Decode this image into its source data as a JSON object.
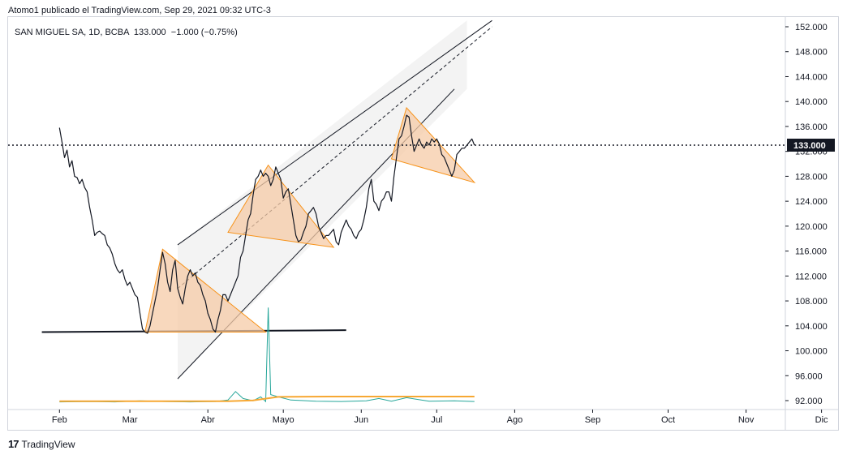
{
  "header": {
    "attribution": "Atomo1 publicado el TradingView.com, Sep 29, 2021 09:32 UTC-3"
  },
  "legend": {
    "text": "SAN MIGUEL SA, 1D, BCBA  133.000  −1.000 (−0.75%)"
  },
  "footer": {
    "brand": "TradingView",
    "logo_glyph": "17"
  },
  "colors": {
    "price": "#131722",
    "pattern_fill": "#f5cba7",
    "pattern_stroke": "#f7931a",
    "channel_fill": "#f3f3f3",
    "volume_line": "#26a69a",
    "volume_ma": "#f7a833"
  },
  "chart_data": {
    "type": "line",
    "symbol": "SAN MIGUEL SA",
    "interval": "1D",
    "exchange": "BCBA",
    "last_price_label": "133.000",
    "last_price": 133,
    "yticks": [
      "152.000",
      "148.000",
      "144.000",
      "140.000",
      "136.000",
      "132.000",
      "128.000",
      "124.000",
      "120.000",
      "116.000",
      "112.000",
      "108.000",
      "104.000",
      "100.000",
      "96.000",
      "92.000"
    ],
    "ylim": [
      90.5,
      153.5
    ],
    "xticks": [
      {
        "label": "Feb",
        "day": -7
      },
      {
        "label": "Mar",
        "day": 21
      },
      {
        "label": "Abr",
        "day": 52
      },
      {
        "label": "Mayo",
        "day": 82
      },
      {
        "label": "Jun",
        "day": 113
      },
      {
        "label": "Jul",
        "day": 143
      },
      {
        "label": "Ago",
        "day": 174
      },
      {
        "label": "Sep",
        "day": 205
      },
      {
        "label": "Oct",
        "day": 235
      },
      {
        "label": "Nov",
        "day": 266
      },
      {
        "label": "Dic",
        "day": 296
      }
    ],
    "x_unit": "days since Mar 1, 2021",
    "series": [
      {
        "values": [
          [
            -7,
            135.8
          ],
          [
            -6,
            133.5
          ],
          [
            -5,
            131
          ],
          [
            -4,
            132.2
          ],
          [
            -3,
            129.5
          ],
          [
            -2,
            130.5
          ],
          [
            -1,
            128
          ],
          [
            0,
            127.8
          ],
          [
            1,
            126.8
          ],
          [
            2,
            127.5
          ],
          [
            3,
            126.2
          ],
          [
            4,
            125.5
          ],
          [
            5,
            123
          ],
          [
            6,
            121
          ],
          [
            7,
            118.5
          ],
          [
            8,
            119
          ],
          [
            9,
            119.2
          ],
          [
            10,
            118.8
          ],
          [
            11,
            118.5
          ],
          [
            12,
            117
          ],
          [
            13,
            116.5
          ],
          [
            14,
            115.5
          ],
          [
            15,
            114
          ],
          [
            16,
            113
          ],
          [
            17,
            112.5
          ],
          [
            18,
            113
          ],
          [
            19,
            111.5
          ],
          [
            20,
            110.5
          ],
          [
            21,
            111
          ],
          [
            22,
            110
          ],
          [
            23,
            109
          ],
          [
            24,
            108.6
          ],
          [
            25,
            106
          ],
          [
            26,
            103.5
          ],
          [
            27,
            103
          ],
          [
            28,
            102.8
          ],
          [
            29,
            104
          ],
          [
            30,
            106
          ],
          [
            31,
            108
          ],
          [
            32,
            110
          ],
          [
            33,
            113
          ],
          [
            34,
            115.8
          ],
          [
            35,
            114
          ],
          [
            36,
            111
          ],
          [
            37,
            109.5
          ],
          [
            38,
            113
          ],
          [
            39,
            114.5
          ],
          [
            40,
            110
          ],
          [
            41,
            108.6
          ],
          [
            42,
            107.5
          ],
          [
            43,
            110
          ],
          [
            44,
            112
          ],
          [
            45,
            113
          ],
          [
            46,
            112
          ],
          [
            47,
            112.5
          ],
          [
            48,
            111
          ],
          [
            49,
            110.5
          ],
          [
            50,
            109
          ],
          [
            51,
            108
          ],
          [
            52,
            106
          ],
          [
            53,
            105
          ],
          [
            54,
            103.5
          ],
          [
            55,
            103
          ],
          [
            56,
            105
          ],
          [
            57,
            106.5
          ],
          [
            58,
            109
          ],
          [
            59,
            109
          ],
          [
            60,
            108
          ],
          [
            61,
            109
          ],
          [
            62,
            110
          ],
          [
            63,
            111
          ],
          [
            64,
            112
          ],
          [
            65,
            115
          ],
          [
            66,
            116
          ],
          [
            67,
            118.5
          ],
          [
            68,
            121
          ],
          [
            69,
            122
          ],
          [
            70,
            125
          ],
          [
            71,
            127.5
          ],
          [
            72,
            128
          ],
          [
            73,
            129
          ],
          [
            74,
            128
          ],
          [
            75,
            128.5
          ],
          [
            76,
            128
          ],
          [
            77,
            126.5
          ],
          [
            78,
            127.5
          ],
          [
            79,
            129.5
          ],
          [
            80,
            128.5
          ],
          [
            81,
            127.5
          ],
          [
            82,
            124.5
          ],
          [
            83,
            125.5
          ],
          [
            84,
            126
          ],
          [
            85,
            123.5
          ],
          [
            86,
            121
          ],
          [
            87,
            118.5
          ],
          [
            88,
            117.5
          ],
          [
            89,
            117.8
          ],
          [
            90,
            119
          ],
          [
            91,
            120
          ],
          [
            92,
            122
          ],
          [
            93,
            122.5
          ],
          [
            94,
            123
          ],
          [
            95,
            122
          ],
          [
            96,
            120
          ],
          [
            97,
            119
          ],
          [
            98,
            118
          ],
          [
            99,
            118.5
          ],
          [
            100,
            118.5
          ],
          [
            101,
            119
          ],
          [
            102,
            119.5
          ],
          [
            103,
            117.5
          ],
          [
            104,
            117
          ],
          [
            105,
            119
          ],
          [
            106,
            120
          ],
          [
            107,
            121
          ],
          [
            108,
            120
          ],
          [
            109,
            119.5
          ],
          [
            110,
            118.5
          ],
          [
            111,
            118
          ],
          [
            112,
            119
          ],
          [
            113,
            119.5
          ],
          [
            114,
            121
          ],
          [
            115,
            123
          ],
          [
            116,
            126
          ],
          [
            117,
            127.5
          ],
          [
            118,
            124
          ],
          [
            119,
            123.5
          ],
          [
            120,
            122.5
          ],
          [
            121,
            124
          ],
          [
            122,
            124.5
          ],
          [
            123,
            125.5
          ],
          [
            124,
            125.5
          ],
          [
            125,
            124
          ],
          [
            126,
            128
          ],
          [
            127,
            131
          ],
          [
            128,
            134
          ],
          [
            129,
            134.5
          ],
          [
            130,
            136
          ],
          [
            131,
            137.8
          ],
          [
            132,
            137.5
          ],
          [
            133,
            134.5
          ],
          [
            134,
            132
          ],
          [
            135,
            133
          ],
          [
            136,
            134
          ],
          [
            137,
            133
          ],
          [
            138,
            132.5
          ],
          [
            139,
            133.5
          ],
          [
            140,
            133
          ],
          [
            141,
            134
          ],
          [
            142,
            133.5
          ],
          [
            143,
            134
          ],
          [
            144,
            133.2
          ],
          [
            145,
            131.5
          ],
          [
            146,
            131
          ],
          [
            147,
            130
          ],
          [
            148,
            129
          ],
          [
            149,
            128
          ],
          [
            150,
            129
          ],
          [
            151,
            131.5
          ],
          [
            152,
            132
          ],
          [
            153,
            132.5
          ],
          [
            154,
            132.5
          ],
          [
            155,
            133
          ],
          [
            156,
            133.5
          ],
          [
            157,
            134
          ],
          [
            158,
            133
          ]
        ]
      },
      {
        "name": "Volume",
        "values": [
          [
            -7,
            0.25
          ],
          [
            5,
            0.3
          ],
          [
            15,
            0.25
          ],
          [
            25,
            0.4
          ],
          [
            35,
            0.3
          ],
          [
            45,
            0.25
          ],
          [
            55,
            0.3
          ],
          [
            60,
            0.5
          ],
          [
            63,
            1.6
          ],
          [
            66,
            0.7
          ],
          [
            70,
            0.4
          ],
          [
            73,
            0.9
          ],
          [
            75,
            0.3
          ],
          [
            76,
            12.5
          ],
          [
            77,
            1.2
          ],
          [
            80,
            0.9
          ],
          [
            85,
            0.5
          ],
          [
            95,
            0.35
          ],
          [
            105,
            0.3
          ],
          [
            115,
            0.4
          ],
          [
            120,
            0.7
          ],
          [
            125,
            0.35
          ],
          [
            131,
            0.8
          ],
          [
            140,
            0.35
          ],
          [
            150,
            0.4
          ],
          [
            158,
            0.3
          ]
        ]
      },
      {
        "name": "Volume MA",
        "values": [
          [
            -7,
            0.35
          ],
          [
            60,
            0.35
          ],
          [
            70,
            0.45
          ],
          [
            80,
            0.9
          ],
          [
            100,
            0.95
          ],
          [
            158,
            0.95
          ]
        ]
      }
    ],
    "annotations": {
      "channel_upper": [
        [
          40,
          117
        ],
        [
          165,
          153
        ]
      ],
      "channel_mid": [
        [
          40,
          110
        ],
        [
          165,
          152
        ]
      ],
      "channel_lower": [
        [
          40,
          95.5
        ],
        [
          150,
          142
        ]
      ],
      "channel_fill": [
        [
          40,
          117
        ],
        [
          155,
          153
        ],
        [
          155,
          142
        ],
        [
          40,
          95.5
        ]
      ],
      "support_line": [
        [
          -14,
          103
        ],
        [
          107,
          103.3
        ]
      ],
      "pattern_1": [
        [
          27,
          103
        ],
        [
          34,
          116.3
        ],
        [
          75,
          103
        ]
      ],
      "pattern_2": [
        [
          60,
          119
        ],
        [
          76,
          129.8
        ],
        [
          102,
          116.6
        ]
      ],
      "pattern_3": [
        [
          125,
          130.8
        ],
        [
          131,
          139
        ],
        [
          158,
          127
        ]
      ]
    },
    "grid": false,
    "legend_position": "top-left"
  }
}
